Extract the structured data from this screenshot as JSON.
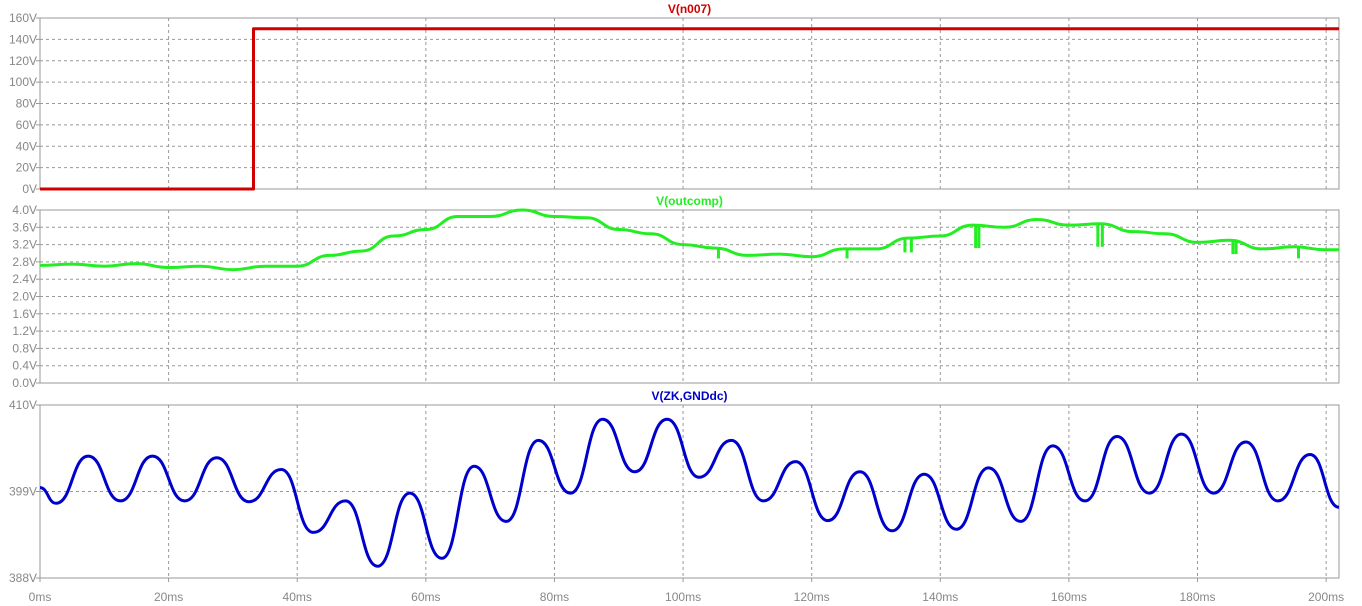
{
  "x_axis": {
    "ticks": [
      "0ms",
      "20ms",
      "40ms",
      "60ms",
      "80ms",
      "100ms",
      "120ms",
      "140ms",
      "160ms",
      "180ms",
      "200ms"
    ],
    "tick_values": [
      0,
      20,
      40,
      60,
      80,
      100,
      120,
      140,
      160,
      180,
      200
    ],
    "range": [
      0,
      202
    ]
  },
  "colors": {
    "v_n007": "#d00000",
    "v_outcomp": "#22ee22",
    "v_zk": "#0000cc",
    "grid": "#999999",
    "tick_text": "#888888",
    "frame": "#999999"
  },
  "chart_data": [
    {
      "type": "line",
      "title": "V(n007)",
      "series_name": "V(n007)",
      "ylim": [
        0,
        160
      ],
      "y_ticks": [
        "0V",
        "20V",
        "40V",
        "60V",
        "80V",
        "100V",
        "120V",
        "140V",
        "160V"
      ],
      "y_tick_values": [
        0,
        20,
        40,
        60,
        80,
        100,
        120,
        140,
        160
      ],
      "x": [
        0,
        33.2,
        33.2,
        202
      ],
      "y": [
        0,
        0,
        150,
        150
      ]
    },
    {
      "type": "line",
      "title": "V(outcomp)",
      "series_name": "V(outcomp)",
      "ylim": [
        0,
        4.0
      ],
      "y_ticks": [
        "0.0V",
        "0.4V",
        "0.8V",
        "1.2V",
        "1.6V",
        "2.0V",
        "2.4V",
        "2.8V",
        "3.2V",
        "3.6V",
        "4.0V"
      ],
      "y_tick_values": [
        0,
        0.4,
        0.8,
        1.2,
        1.6,
        2.0,
        2.4,
        2.8,
        3.2,
        3.6,
        4.0
      ],
      "x": [
        0,
        5,
        10,
        15,
        20,
        25,
        30,
        35,
        40,
        45,
        50,
        55,
        60,
        65,
        70,
        75,
        80,
        85,
        90,
        95,
        100,
        105,
        110,
        115,
        120,
        125,
        130,
        135,
        140,
        145,
        150,
        155,
        160,
        165,
        170,
        175,
        180,
        185,
        190,
        195,
        200,
        202
      ],
      "y": [
        2.72,
        2.75,
        2.7,
        2.76,
        2.67,
        2.7,
        2.62,
        2.7,
        2.7,
        2.95,
        3.05,
        3.4,
        3.55,
        3.85,
        3.85,
        4.0,
        3.85,
        3.82,
        3.55,
        3.45,
        3.2,
        3.12,
        2.95,
        2.98,
        2.92,
        3.1,
        3.1,
        3.35,
        3.4,
        3.65,
        3.6,
        3.78,
        3.65,
        3.68,
        3.5,
        3.45,
        3.25,
        3.3,
        3.1,
        3.15,
        3.08,
        3.08
      ],
      "dips": [
        {
          "x": 105.5,
          "to": 2.88
        },
        {
          "x": 125.5,
          "to": 2.88
        },
        {
          "x": 134.5,
          "to": 3.02
        },
        {
          "x": 135.5,
          "to": 3.02
        },
        {
          "x": 145.5,
          "to": 3.12
        },
        {
          "x": 146.0,
          "to": 3.12
        },
        {
          "x": 164.5,
          "to": 3.15
        },
        {
          "x": 165.2,
          "to": 3.15
        },
        {
          "x": 185.5,
          "to": 2.98
        },
        {
          "x": 186.0,
          "to": 2.98
        },
        {
          "x": 195.7,
          "to": 2.88
        }
      ]
    },
    {
      "type": "line",
      "title": "V(ZK,GNDdc)",
      "series_name": "V(ZK,GNDdc)",
      "ylim": [
        388,
        410
      ],
      "y_ticks": [
        "388V",
        "399V",
        "410V"
      ],
      "y_tick_values": [
        388,
        399,
        410
      ],
      "x": [
        0,
        2.5,
        7.5,
        12.5,
        17.5,
        22.5,
        27.5,
        32.5,
        37.5,
        42.5,
        47.5,
        52.5,
        57.5,
        62.5,
        67.5,
        72.5,
        77.5,
        82.5,
        87.5,
        92.5,
        97.5,
        102.5,
        107.5,
        112.5,
        117.5,
        122.5,
        127.5,
        132.5,
        137.5,
        142.5,
        147.5,
        152.5,
        157.5,
        162.5,
        167.5,
        172.5,
        177.5,
        182.5,
        187.5,
        192.5,
        197.5,
        202
      ],
      "y": [
        399.5,
        397.5,
        403.5,
        397.8,
        403.5,
        397.8,
        403.3,
        397.7,
        401.8,
        393.8,
        397.8,
        389.5,
        398.8,
        390.5,
        402.2,
        395.2,
        405.5,
        398.8,
        408.2,
        401.5,
        408.2,
        400.8,
        405.5,
        397.8,
        402.8,
        395.3,
        401.5,
        394.0,
        401.2,
        394.2,
        402.0,
        395.2,
        404.8,
        397.8,
        406.0,
        398.8,
        406.3,
        398.8,
        405.3,
        397.8,
        403.7,
        397.0
      ]
    }
  ]
}
